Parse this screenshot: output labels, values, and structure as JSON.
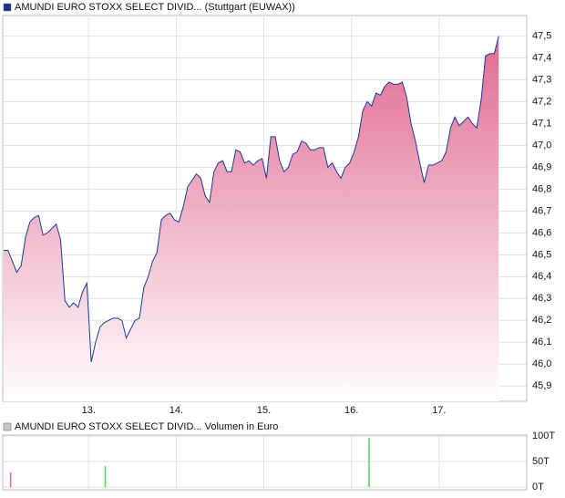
{
  "chart_data": [
    {
      "type": "area",
      "series": [
        {
          "name": "AMUNDI EURO STOXX SELECT DIVID... (Stuttgart (EUWAX))",
          "color": "#1c3a94",
          "fill_color": "#e06a94",
          "x": [
            12.03,
            12.08,
            12.13,
            12.18,
            12.23,
            12.28,
            12.33,
            12.38,
            12.43,
            12.48,
            12.53,
            12.58,
            12.63,
            12.68,
            12.73,
            12.78,
            12.83,
            12.88,
            12.93,
            12.98,
            13.03,
            13.08,
            13.13,
            13.18,
            13.23,
            13.28,
            13.33,
            13.38,
            13.43,
            13.48,
            13.53,
            13.58,
            13.63,
            13.68,
            13.73,
            13.78,
            13.83,
            13.88,
            13.93,
            13.98,
            14.03,
            14.08,
            14.13,
            14.18,
            14.23,
            14.28,
            14.33,
            14.38,
            14.43,
            14.48,
            14.53,
            14.58,
            14.63,
            14.68,
            14.73,
            14.78,
            14.83,
            14.88,
            14.93,
            14.98,
            15.03,
            15.08,
            15.13,
            15.18,
            15.23,
            15.28,
            15.33,
            15.38,
            15.43,
            15.48,
            15.53,
            15.58,
            15.63,
            15.68,
            15.73,
            15.78,
            15.83,
            15.88,
            15.93,
            15.98,
            16.03,
            16.08,
            16.13,
            16.18,
            16.23,
            16.28,
            16.33,
            16.38,
            16.43,
            16.48,
            16.53,
            16.58,
            16.63,
            16.68,
            16.73,
            16.78,
            16.83,
            16.88,
            16.93,
            16.98,
            17.03,
            17.08,
            17.13,
            17.18,
            17.23,
            17.28,
            17.33,
            17.38,
            17.43,
            17.48,
            17.53,
            17.58,
            17.63,
            17.68
          ],
          "values": [
            46.52,
            46.52,
            46.47,
            46.42,
            46.45,
            46.58,
            46.65,
            46.67,
            46.68,
            46.59,
            46.6,
            46.62,
            46.64,
            46.57,
            46.29,
            46.26,
            46.28,
            46.26,
            46.33,
            46.37,
            46.01,
            46.1,
            46.17,
            46.19,
            46.2,
            46.21,
            46.21,
            46.2,
            46.12,
            46.16,
            46.2,
            46.21,
            46.35,
            46.4,
            46.47,
            46.51,
            46.66,
            46.68,
            46.69,
            46.66,
            46.65,
            46.72,
            46.81,
            46.84,
            46.87,
            46.85,
            46.77,
            46.74,
            46.88,
            46.92,
            46.93,
            46.88,
            46.88,
            46.98,
            46.97,
            46.92,
            46.93,
            46.91,
            46.93,
            46.94,
            46.85,
            47.04,
            47.04,
            46.93,
            46.88,
            46.9,
            46.96,
            46.97,
            47.02,
            47.01,
            46.98,
            46.98,
            46.99,
            46.99,
            46.9,
            46.92,
            46.88,
            46.85,
            46.9,
            46.92,
            46.97,
            47.04,
            47.16,
            47.2,
            47.18,
            47.24,
            47.23,
            47.27,
            47.29,
            47.28,
            47.28,
            47.29,
            47.22,
            47.1,
            47.02,
            46.92,
            46.83,
            46.91,
            46.91,
            46.92,
            46.93,
            46.97,
            47.08,
            47.13,
            47.09,
            47.11,
            47.13,
            47.1,
            47.08,
            47.21,
            47.41,
            47.42,
            47.42,
            47.5
          ]
        }
      ],
      "xlim": [
        12.02,
        18.0
      ],
      "ylim": [
        45.83,
        47.59
      ],
      "xticks": [
        {
          "value": 13,
          "label": "13."
        },
        {
          "value": 14,
          "label": "14."
        },
        {
          "value": 15,
          "label": "15."
        },
        {
          "value": 16,
          "label": "16."
        },
        {
          "value": 17,
          "label": "17."
        }
      ],
      "yticks": [
        {
          "value": 45.9,
          "label": "45,9"
        },
        {
          "value": 46.0,
          "label": "46,0"
        },
        {
          "value": 46.1,
          "label": "46,1"
        },
        {
          "value": 46.2,
          "label": "46,2"
        },
        {
          "value": 46.3,
          "label": "46,3"
        },
        {
          "value": 46.4,
          "label": "46,4"
        },
        {
          "value": 46.5,
          "label": "46,5"
        },
        {
          "value": 46.6,
          "label": "46,6"
        },
        {
          "value": 46.7,
          "label": "46,7"
        },
        {
          "value": 46.8,
          "label": "46,8"
        },
        {
          "value": 46.9,
          "label": "46,9"
        },
        {
          "value": 47.0,
          "label": "47,0"
        },
        {
          "value": 47.1,
          "label": "47,1"
        },
        {
          "value": 47.2,
          "label": "47,2"
        },
        {
          "value": 47.3,
          "label": "47,3"
        },
        {
          "value": 47.4,
          "label": "47,4"
        },
        {
          "value": 47.5,
          "label": "47,5"
        }
      ],
      "grid": true
    },
    {
      "type": "bar",
      "series": [
        {
          "name": "AMUNDI EURO STOXX SELECT DIVID... Volumen in Euro",
          "color": "#c8c8c8",
          "x": [
            12.11,
            13.19,
            16.2
          ],
          "values": [
            29,
            41,
            96
          ],
          "colors": [
            "#d0708e",
            "#5ccc5c",
            "#5ccc5c"
          ]
        }
      ],
      "xlim": [
        12.02,
        18.0
      ],
      "ylim": [
        0,
        100
      ],
      "yticks": [
        {
          "value": 0,
          "label": "0T"
        },
        {
          "value": 50,
          "label": "50T"
        },
        {
          "value": 100,
          "label": "100T"
        }
      ],
      "grid": true
    }
  ]
}
